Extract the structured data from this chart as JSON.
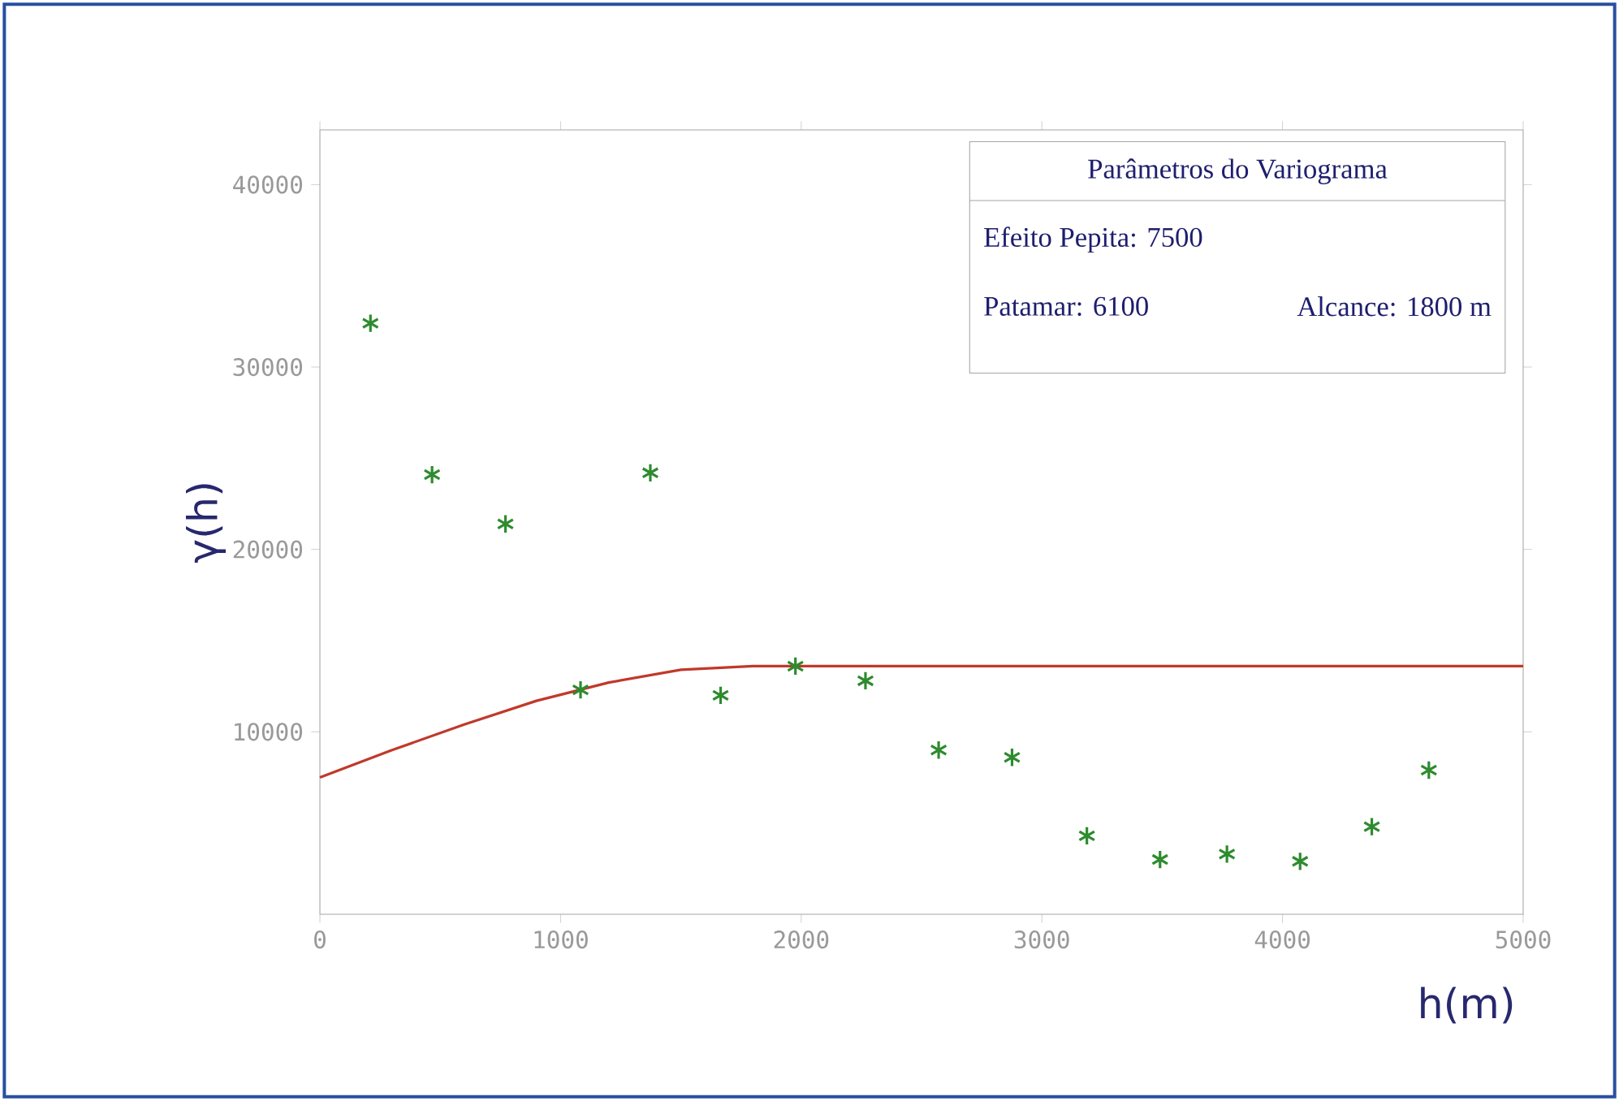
{
  "chart_data": {
    "type": "scatter",
    "xlabel": "h(m)",
    "ylabel": "γ(h)",
    "xlim": [
      0,
      5000
    ],
    "ylim": [
      0,
      43000
    ],
    "xticks": [
      0,
      1000,
      2000,
      3000,
      4000,
      5000
    ],
    "yticks": [
      10000,
      20000,
      30000,
      40000
    ],
    "grid": false,
    "annotations": [
      "Parâmetros do Variograma",
      "Efeito Pepita: 7500",
      "Patamar: 6100",
      "Alcance: 1800 m"
    ],
    "series": [
      {
        "color": "#2e8b2e",
        "marker": "cross",
        "x": [
          210,
          466,
          771,
          1083,
          1373,
          1665,
          1976,
          2267,
          2571,
          2876,
          3187,
          3491,
          3769,
          4073,
          4371,
          4608
        ],
        "values": [
          32400,
          24100,
          21400,
          12300,
          24200,
          12000,
          13600,
          12800,
          9000,
          8600,
          4300,
          3000,
          3300,
          2900,
          4800,
          7900
        ]
      },
      {
        "type": "line",
        "color": "#c0392b",
        "marker": "none",
        "line_style": "solid",
        "x": [
          0,
          300,
          600,
          900,
          1200,
          1500,
          1800,
          5000
        ],
        "values": [
          7500,
          9000,
          10400,
          11700,
          12700,
          13400,
          13600,
          13600
        ]
      }
    ]
  }
}
